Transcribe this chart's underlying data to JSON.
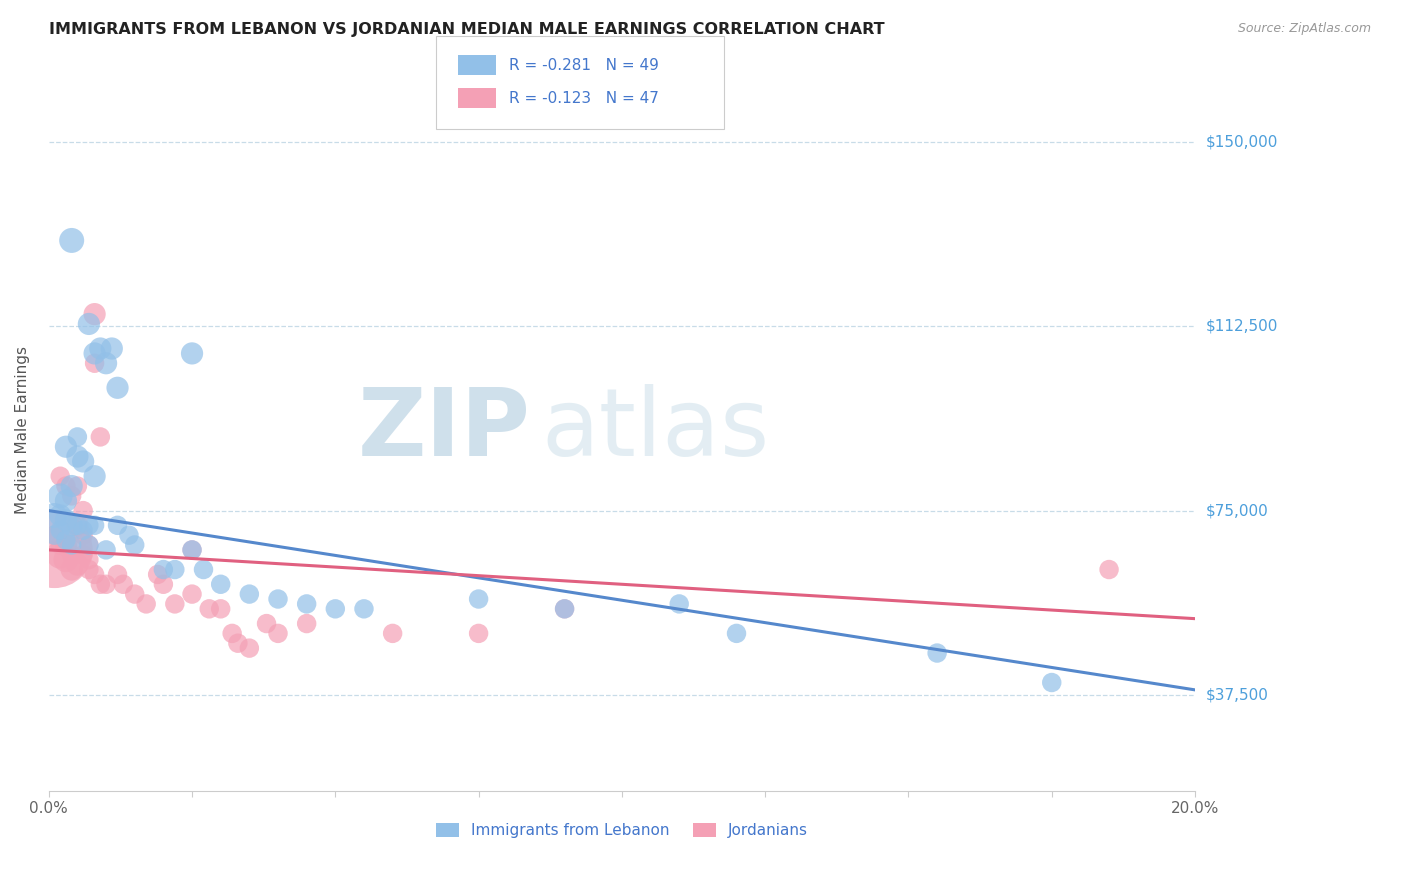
{
  "title": "IMMIGRANTS FROM LEBANON VS JORDANIAN MEDIAN MALE EARNINGS CORRELATION CHART",
  "source": "Source: ZipAtlas.com",
  "ylabel": "Median Male Earnings",
  "label_blue": "Immigrants from Lebanon",
  "label_pink": "Jordanians",
  "y_ticks": [
    37500,
    75000,
    112500,
    150000
  ],
  "y_tick_labels": [
    "$37,500",
    "$75,000",
    "$112,500",
    "$150,000"
  ],
  "x_min": 0.0,
  "x_max": 0.2,
  "y_min": 18000,
  "y_max": 165000,
  "legend_r_blue": "R = -0.281",
  "legend_n_blue": "N = 49",
  "legend_r_pink": "R = -0.123",
  "legend_n_pink": "N = 47",
  "blue_color": "#92c0e8",
  "pink_color": "#f4a0b5",
  "trendline_blue_color": "#5588cc",
  "trendline_pink_color": "#e06080",
  "watermark_zip": "ZIP",
  "watermark_atlas": "atlas",
  "trendline_blue": [
    [
      0.0,
      75000
    ],
    [
      0.2,
      38500
    ]
  ],
  "trendline_pink": [
    [
      0.0,
      67000
    ],
    [
      0.2,
      53000
    ]
  ],
  "blue_points": [
    [
      0.004,
      130000,
      18
    ],
    [
      0.008,
      107000,
      16
    ],
    [
      0.009,
      108000,
      16
    ],
    [
      0.01,
      105000,
      16
    ],
    [
      0.011,
      108000,
      16
    ],
    [
      0.007,
      113000,
      16
    ],
    [
      0.012,
      100000,
      16
    ],
    [
      0.025,
      107000,
      16
    ],
    [
      0.003,
      88000,
      16
    ],
    [
      0.005,
      86000,
      16
    ],
    [
      0.006,
      85000,
      16
    ],
    [
      0.008,
      82000,
      16
    ],
    [
      0.004,
      80000,
      16
    ],
    [
      0.002,
      78000,
      18
    ],
    [
      0.003,
      77000,
      16
    ],
    [
      0.005,
      90000,
      14
    ],
    [
      0.001,
      74000,
      18
    ],
    [
      0.002,
      74000,
      16
    ],
    [
      0.003,
      73000,
      16
    ],
    [
      0.004,
      72000,
      16
    ],
    [
      0.005,
      72000,
      14
    ],
    [
      0.006,
      71000,
      14
    ],
    [
      0.007,
      72000,
      14
    ],
    [
      0.008,
      72000,
      14
    ],
    [
      0.001,
      70000,
      14
    ],
    [
      0.002,
      71000,
      14
    ],
    [
      0.003,
      69000,
      14
    ],
    [
      0.004,
      68000,
      14
    ],
    [
      0.007,
      68000,
      14
    ],
    [
      0.01,
      67000,
      14
    ],
    [
      0.012,
      72000,
      14
    ],
    [
      0.014,
      70000,
      14
    ],
    [
      0.015,
      68000,
      14
    ],
    [
      0.02,
      63000,
      14
    ],
    [
      0.022,
      63000,
      14
    ],
    [
      0.025,
      67000,
      14
    ],
    [
      0.027,
      63000,
      14
    ],
    [
      0.03,
      60000,
      14
    ],
    [
      0.035,
      58000,
      14
    ],
    [
      0.04,
      57000,
      14
    ],
    [
      0.045,
      56000,
      14
    ],
    [
      0.05,
      55000,
      14
    ],
    [
      0.055,
      55000,
      14
    ],
    [
      0.075,
      57000,
      14
    ],
    [
      0.09,
      55000,
      14
    ],
    [
      0.11,
      56000,
      14
    ],
    [
      0.12,
      50000,
      14
    ],
    [
      0.155,
      46000,
      14
    ],
    [
      0.175,
      40000,
      14
    ]
  ],
  "pink_points": [
    [
      0.001,
      67000,
      55
    ],
    [
      0.002,
      66000,
      20
    ],
    [
      0.003,
      65000,
      18
    ],
    [
      0.003,
      68000,
      16
    ],
    [
      0.004,
      63000,
      16
    ],
    [
      0.005,
      64000,
      16
    ],
    [
      0.005,
      72000,
      16
    ],
    [
      0.006,
      70000,
      14
    ],
    [
      0.007,
      68000,
      14
    ],
    [
      0.007,
      65000,
      14
    ],
    [
      0.008,
      115000,
      16
    ],
    [
      0.008,
      105000,
      14
    ],
    [
      0.009,
      90000,
      14
    ],
    [
      0.002,
      82000,
      14
    ],
    [
      0.003,
      80000,
      14
    ],
    [
      0.004,
      78000,
      14
    ],
    [
      0.005,
      80000,
      14
    ],
    [
      0.006,
      75000,
      14
    ],
    [
      0.001,
      70000,
      14
    ],
    [
      0.002,
      68000,
      14
    ],
    [
      0.004,
      66000,
      14
    ],
    [
      0.006,
      66000,
      14
    ],
    [
      0.007,
      63000,
      14
    ],
    [
      0.008,
      62000,
      14
    ],
    [
      0.009,
      60000,
      14
    ],
    [
      0.01,
      60000,
      14
    ],
    [
      0.012,
      62000,
      14
    ],
    [
      0.013,
      60000,
      14
    ],
    [
      0.015,
      58000,
      14
    ],
    [
      0.017,
      56000,
      14
    ],
    [
      0.019,
      62000,
      14
    ],
    [
      0.02,
      60000,
      14
    ],
    [
      0.022,
      56000,
      14
    ],
    [
      0.025,
      67000,
      14
    ],
    [
      0.025,
      58000,
      14
    ],
    [
      0.028,
      55000,
      14
    ],
    [
      0.03,
      55000,
      14
    ],
    [
      0.032,
      50000,
      14
    ],
    [
      0.033,
      48000,
      14
    ],
    [
      0.035,
      47000,
      14
    ],
    [
      0.038,
      52000,
      14
    ],
    [
      0.04,
      50000,
      14
    ],
    [
      0.045,
      52000,
      14
    ],
    [
      0.06,
      50000,
      14
    ],
    [
      0.075,
      50000,
      14
    ],
    [
      0.09,
      55000,
      14
    ],
    [
      0.185,
      63000,
      14
    ]
  ]
}
